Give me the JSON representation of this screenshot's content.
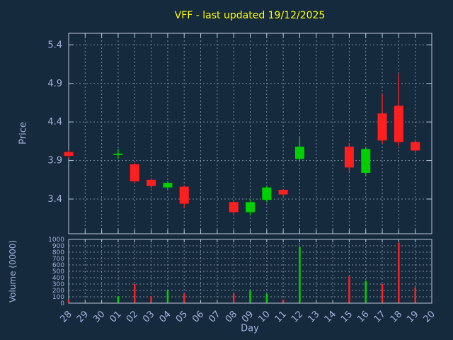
{
  "chart_data": {
    "type": "candlestick",
    "title": "VFF - last updated 19/12/2025",
    "xlabel": "Day",
    "price_ylabel": "Price",
    "volume_ylabel": "Volume (0000)",
    "x_categories": [
      "28",
      "29",
      "30",
      "01",
      "02",
      "03",
      "04",
      "05",
      "06",
      "07",
      "08",
      "09",
      "10",
      "11",
      "12",
      "13",
      "14",
      "15",
      "16",
      "17",
      "18",
      "19",
      "20"
    ],
    "price_ticks": [
      3.4,
      3.9,
      4.4,
      4.9,
      5.4
    ],
    "price_ylim": [
      2.95,
      5.55
    ],
    "volume_ticks": [
      0,
      100,
      200,
      300,
      400,
      500,
      600,
      700,
      800,
      900,
      1000
    ],
    "volume_ylim": [
      0,
      1000
    ],
    "grid": "dashed",
    "legend": "none",
    "colors": {
      "background": "#162a3d",
      "title": "#ffff00",
      "text": "#a4b1dc",
      "border": "#bcc7d4",
      "grid": "#7d8da0",
      "up": "#00d000",
      "down": "#ff1f1f"
    },
    "candles": [
      {
        "day": "28",
        "open": 4.01,
        "high": 4.03,
        "low": 3.93,
        "close": 3.96,
        "volume": 55
      },
      {
        "day": "01",
        "open": 3.98,
        "high": 4.05,
        "low": 3.92,
        "close": 3.99,
        "volume": 110
      },
      {
        "day": "02",
        "open": 3.85,
        "high": 3.87,
        "low": 3.61,
        "close": 3.63,
        "volume": 300
      },
      {
        "day": "03",
        "open": 3.65,
        "high": 3.67,
        "low": 3.54,
        "close": 3.57,
        "volume": 110
      },
      {
        "day": "04",
        "open": 3.55,
        "high": 3.63,
        "low": 3.53,
        "close": 3.61,
        "volume": 200
      },
      {
        "day": "05",
        "open": 3.56,
        "high": 3.58,
        "low": 3.29,
        "close": 3.34,
        "volume": 150
      },
      {
        "day": "08",
        "open": 3.36,
        "high": 3.38,
        "low": 3.2,
        "close": 3.23,
        "volume": 150
      },
      {
        "day": "09",
        "open": 3.23,
        "high": 3.4,
        "low": 3.19,
        "close": 3.36,
        "volume": 200
      },
      {
        "day": "10",
        "open": 3.39,
        "high": 3.57,
        "low": 3.36,
        "close": 3.55,
        "volume": 150
      },
      {
        "day": "11",
        "open": 3.52,
        "high": 3.53,
        "low": 3.43,
        "close": 3.46,
        "volume": 55
      },
      {
        "day": "12",
        "open": 3.92,
        "high": 4.2,
        "low": 3.9,
        "close": 4.08,
        "volume": 880
      },
      {
        "day": "15",
        "open": 4.08,
        "high": 4.13,
        "low": 3.76,
        "close": 3.81,
        "volume": 420
      },
      {
        "day": "16",
        "open": 3.74,
        "high": 4.08,
        "low": 3.7,
        "close": 4.05,
        "volume": 350
      },
      {
        "day": "17",
        "open": 4.51,
        "high": 4.76,
        "low": 4.12,
        "close": 4.16,
        "volume": 300
      },
      {
        "day": "18",
        "open": 4.61,
        "high": 5.02,
        "low": 4.09,
        "close": 4.14,
        "volume": 950
      },
      {
        "day": "19",
        "open": 4.14,
        "high": 4.17,
        "low": 4.0,
        "close": 4.03,
        "volume": 250
      }
    ]
  }
}
